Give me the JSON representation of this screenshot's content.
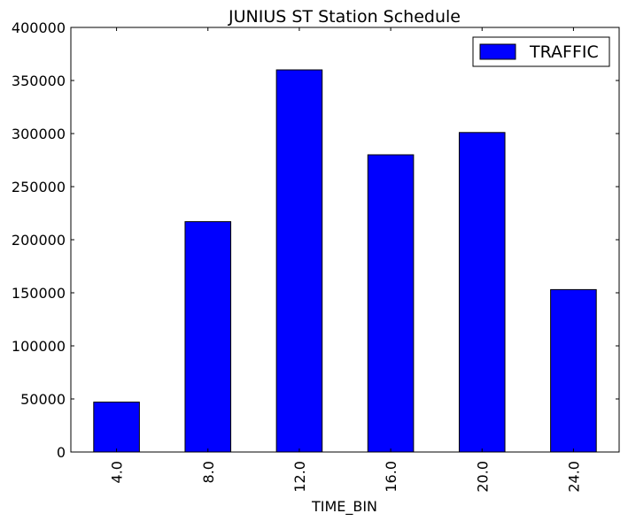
{
  "chart_data": {
    "type": "bar",
    "title": "JUNIUS ST Station Schedule",
    "xlabel": "TIME_BIN",
    "ylabel": "",
    "categories": [
      "4.0",
      "8.0",
      "12.0",
      "16.0",
      "20.0",
      "24.0"
    ],
    "series": [
      {
        "name": "TRAFFIC",
        "values": [
          47000,
          217000,
          360000,
          280000,
          301000,
          153000
        ],
        "color": "#0000ff"
      }
    ],
    "ylim": [
      0,
      400000
    ],
    "yticks": [
      0,
      50000,
      100000,
      150000,
      200000,
      250000,
      300000,
      350000,
      400000
    ],
    "ytick_labels": [
      "0",
      "50000",
      "100000",
      "150000",
      "200000",
      "250000",
      "300000",
      "350000",
      "400000"
    ],
    "legend": {
      "position": "top-right",
      "entries": [
        "TRAFFIC"
      ]
    },
    "grid": false
  }
}
